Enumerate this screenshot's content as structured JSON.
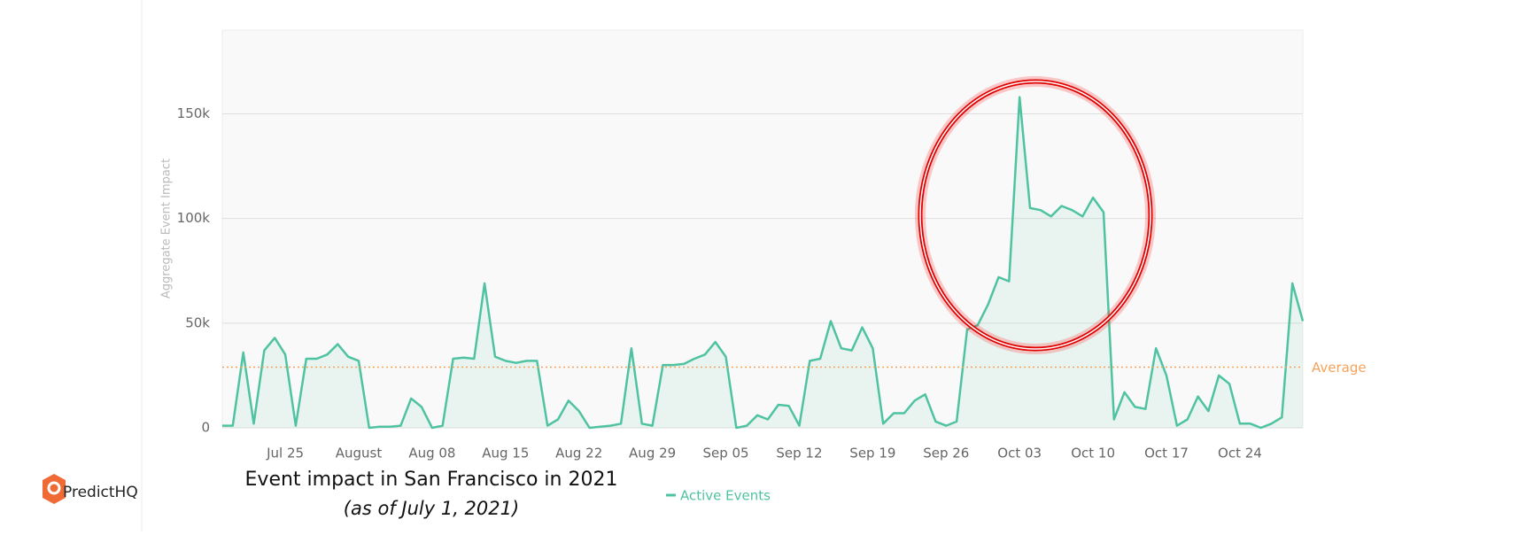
{
  "chart_data": {
    "type": "line",
    "y_label": "Aggregate Event Impact",
    "categories": [
      "Jul 19",
      "Jul 20",
      "Jul 21",
      "Jul 22",
      "Jul 23",
      "Jul 24",
      "Jul 25",
      "Jul 26",
      "Jul 27",
      "Jul 28",
      "Jul 29",
      "Jul 30",
      "Jul 31",
      "Aug 01",
      "Aug 02",
      "Aug 03",
      "Aug 04",
      "Aug 05",
      "Aug 06",
      "Aug 07",
      "Aug 08",
      "Aug 09",
      "Aug 10",
      "Aug 11",
      "Aug 12",
      "Aug 13",
      "Aug 14",
      "Aug 15",
      "Aug 16",
      "Aug 17",
      "Aug 18",
      "Aug 19",
      "Aug 20",
      "Aug 21",
      "Aug 22",
      "Aug 23",
      "Aug 24",
      "Aug 25",
      "Aug 26",
      "Aug 27",
      "Aug 28",
      "Aug 29",
      "Aug 30",
      "Aug 31",
      "Sep 01",
      "Sep 02",
      "Sep 03",
      "Sep 04",
      "Sep 05",
      "Sep 06",
      "Sep 07",
      "Sep 08",
      "Sep 09",
      "Sep 10",
      "Sep 11",
      "Sep 12",
      "Sep 13",
      "Sep 14",
      "Sep 15",
      "Sep 16",
      "Sep 17",
      "Sep 18",
      "Sep 19",
      "Sep 20",
      "Sep 21",
      "Sep 22",
      "Sep 23",
      "Sep 24",
      "Sep 25",
      "Sep 26",
      "Sep 27",
      "Sep 28",
      "Sep 29",
      "Sep 30",
      "Oct 01",
      "Oct 02",
      "Oct 03",
      "Oct 04",
      "Oct 05",
      "Oct 06",
      "Oct 07",
      "Oct 08",
      "Oct 09",
      "Oct 10",
      "Oct 11",
      "Oct 12",
      "Oct 13",
      "Oct 14",
      "Oct 15",
      "Oct 16",
      "Oct 17",
      "Oct 18",
      "Oct 19",
      "Oct 20",
      "Oct 21",
      "Oct 22",
      "Oct 23",
      "Oct 24",
      "Oct 25",
      "Oct 26",
      "Oct 27",
      "Oct 28",
      "Oct 29",
      "Oct 30"
    ],
    "series": [
      {
        "name": "Active Events",
        "color": "#4fc3a1",
        "values": [
          1000,
          1000,
          36000,
          2000,
          37000,
          43000,
          35000,
          1000,
          33000,
          33000,
          35000,
          40000,
          34000,
          32000,
          0,
          500,
          500,
          1000,
          14000,
          10000,
          0,
          1000,
          33000,
          33500,
          33000,
          69000,
          34000,
          32000,
          31000,
          32000,
          32000,
          1000,
          4000,
          13000,
          8000,
          0,
          500,
          1000,
          2000,
          38000,
          2000,
          1000,
          30000,
          30000,
          30500,
          33000,
          35000,
          41000,
          34000,
          0,
          1000,
          6000,
          4000,
          11000,
          10500,
          1000,
          32000,
          33000,
          51000,
          38000,
          37000,
          48000,
          38000,
          2000,
          7000,
          7000,
          13000,
          16000,
          3000,
          1000,
          3000,
          47000,
          49000,
          59000,
          72000,
          70000,
          158000,
          105000,
          104000,
          101000,
          106000,
          104000,
          101000,
          110000,
          103000,
          4000,
          17000,
          10000,
          9000,
          38000,
          25000,
          1000,
          4000,
          15000,
          8000,
          25000,
          21000,
          2000,
          2000,
          0,
          2000,
          5000,
          69000,
          51000
        ]
      }
    ],
    "xticks": [
      "Jul 25",
      {
        "value": "Aug 01",
        "label": "August"
      },
      "Aug 08",
      "Aug 15",
      "Aug 22",
      "Aug 29",
      "Sep 05",
      "Sep 12",
      "Sep 19",
      "Sep 26",
      "Oct 03",
      "Oct 10",
      "Oct 17",
      "Oct 24"
    ],
    "ylim": [
      0,
      190000
    ],
    "yticks": [
      0,
      {
        "value": 50000,
        "label": "50k"
      },
      {
        "value": 100000,
        "label": "100k"
      },
      {
        "value": 150000,
        "label": "150k"
      }
    ],
    "grid": true,
    "average": {
      "value": 29000,
      "label": "Average",
      "color": "#f5a35c"
    }
  },
  "caption": "Event impact in  San Francisco in 2021",
  "caption_note": "(as of July 1, 2021)",
  "brand": "PredictHQ"
}
